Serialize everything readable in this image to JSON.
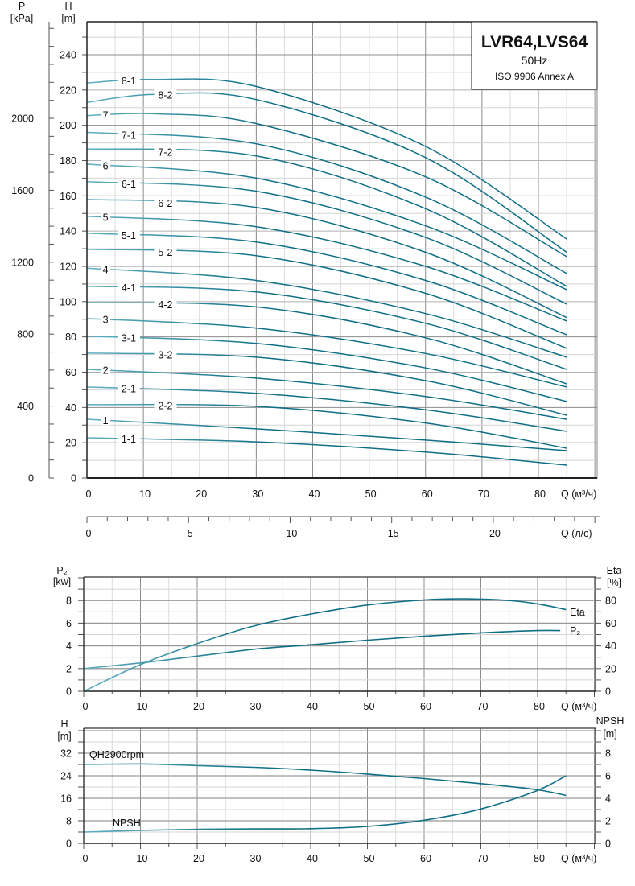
{
  "colors": {
    "curve_light": "#5fb0c0",
    "curve_dark": "#0f6f86",
    "grid_major": "#8c8c8c",
    "grid_minor": "#d4d4d4",
    "frame": "#222222"
  },
  "chart_data": [
    {
      "type": "line",
      "title": "LVR64,LVS64",
      "subtitle": "50Hz",
      "standard": "ISO 9906 Annex A",
      "xlabel": "Q (м³/ч)",
      "x2label": "Q (л/с)",
      "ylabel": {
        "name": "H",
        "unit": "[m]"
      },
      "y2label": {
        "name": "P",
        "unit": "[kPa]"
      },
      "xlim": [
        0,
        90
      ],
      "ylim": [
        0,
        260
      ],
      "xticks": [
        0,
        10,
        20,
        30,
        40,
        50,
        60,
        70,
        80
      ],
      "x2ticks": [
        0,
        5,
        10,
        15,
        20
      ],
      "yticks": [
        0,
        20,
        40,
        60,
        80,
        100,
        120,
        140,
        160,
        180,
        200,
        220,
        240
      ],
      "y2ticks": [
        0,
        400,
        800,
        1200,
        1600,
        2000
      ],
      "grid": true,
      "series": [
        {
          "name": "8-1",
          "x": [
            0,
            12,
            30,
            60,
            85
          ],
          "y": [
            224,
            226,
            222,
            188,
            135.5
          ]
        },
        {
          "name": "8-2",
          "x": [
            0,
            12,
            30,
            60,
            85
          ],
          "y": [
            213,
            217.5,
            214.6,
            181.7,
            128
          ]
        },
        {
          "name": "7",
          "x": [
            0,
            12,
            30,
            60,
            85
          ],
          "y": [
            205.5,
            206.5,
            201,
            170.8,
            125.5
          ]
        },
        {
          "name": "7-1",
          "x": [
            0,
            30,
            60,
            85
          ],
          "y": [
            196,
            189.5,
            159.3,
            116
          ]
        },
        {
          "name": "7-2",
          "x": [
            0,
            30,
            60,
            85
          ],
          "y": [
            186.6,
            182.6,
            152.7,
            108.7
          ]
        },
        {
          "name": "6",
          "x": [
            0,
            30,
            60,
            85
          ],
          "y": [
            178,
            170,
            143,
            106.8
          ]
        },
        {
          "name": "6-1",
          "x": [
            0,
            30,
            60,
            85
          ],
          "y": [
            168,
            162.6,
            136.4,
            98.6
          ]
        },
        {
          "name": "6-2",
          "x": [
            0,
            30,
            60,
            85
          ],
          "y": [
            158,
            153.4,
            128,
            91
          ]
        },
        {
          "name": "5",
          "x": [
            0,
            30,
            60,
            85
          ],
          "y": [
            148.4,
            142.5,
            120,
            89
          ]
        },
        {
          "name": "5-1",
          "x": [
            0,
            30,
            60,
            85
          ],
          "y": [
            138.8,
            133.8,
            112,
            81.2
          ]
        },
        {
          "name": "5-2",
          "x": [
            0,
            30,
            60,
            85
          ],
          "y": [
            129.7,
            126,
            104.7,
            73.5
          ]
        },
        {
          "name": "4",
          "x": [
            0,
            30,
            60,
            85
          ],
          "y": [
            119,
            112,
            93.2,
            68.5
          ]
        },
        {
          "name": "4-1",
          "x": [
            0,
            30,
            60,
            85
          ],
          "y": [
            108.7,
            105.5,
            87.7,
            61.6
          ]
        },
        {
          "name": "4-2",
          "x": [
            0,
            30,
            60,
            85
          ],
          "y": [
            99.5,
            97,
            79.5,
            53.4
          ]
        },
        {
          "name": "3",
          "x": [
            0,
            30,
            60,
            85
          ],
          "y": [
            90.4,
            85,
            70.6,
            51.6
          ]
        },
        {
          "name": "3-1",
          "x": [
            0,
            30,
            60,
            85
          ],
          "y": [
            80.4,
            76.3,
            62.4,
            43.4
          ]
        },
        {
          "name": "3-2",
          "x": [
            0,
            30,
            60,
            85
          ],
          "y": [
            70.8,
            68.5,
            55.2,
            35.6
          ]
        },
        {
          "name": "2",
          "x": [
            0,
            30,
            60,
            85
          ],
          "y": [
            61.6,
            56.6,
            46.2,
            33.3
          ]
        },
        {
          "name": "2-1",
          "x": [
            0,
            30,
            60,
            85
          ],
          "y": [
            51.6,
            48,
            38.7,
            26.5
          ]
        },
        {
          "name": "2-2",
          "x": [
            0,
            30,
            60,
            85
          ],
          "y": [
            41.6,
            40.6,
            31.2,
            16.9
          ]
        },
        {
          "name": "1",
          "x": [
            0,
            30,
            60,
            85
          ],
          "y": [
            33.3,
            27.9,
            21.5,
            15.5
          ]
        },
        {
          "name": "1-1",
          "x": [
            0,
            30,
            60,
            85
          ],
          "y": [
            22.8,
            20.5,
            14.7,
            7.3
          ]
        }
      ]
    },
    {
      "type": "line",
      "xlabel": "Q (м³/ч)",
      "ylabel": {
        "name": "P₂",
        "unit": "[kw]"
      },
      "y2label": {
        "name": "Eta",
        "unit": "[%]"
      },
      "xlim": [
        0,
        90
      ],
      "ylim": [
        0,
        10
      ],
      "y2lim": [
        0,
        100
      ],
      "xticks": [
        0,
        10,
        20,
        30,
        40,
        50,
        60,
        70,
        80
      ],
      "yticks": [
        0,
        2,
        4,
        6,
        8
      ],
      "y2ticks": [
        0,
        20,
        40,
        60,
        80
      ],
      "grid": true,
      "series": [
        {
          "name": "Eta",
          "axis": "right",
          "x": [
            0,
            10,
            20,
            30,
            40,
            50,
            60,
            67,
            75,
            80,
            85
          ],
          "y": [
            0,
            23.5,
            42,
            57.5,
            68,
            76,
            80.5,
            81.5,
            80,
            77,
            72
          ]
        },
        {
          "name": "P₂",
          "axis": "left",
          "x": [
            0,
            10,
            20,
            30,
            40,
            50,
            60,
            70,
            80,
            84
          ],
          "y": [
            2.0,
            2.5,
            3.1,
            3.7,
            4.1,
            4.5,
            4.85,
            5.15,
            5.35,
            5.35
          ]
        }
      ]
    },
    {
      "type": "line",
      "xlabel": "Q (м³/ч)",
      "ylabel": {
        "name": "H",
        "unit": "[m]"
      },
      "y2label": {
        "name": "NPSH",
        "unit": "[m]"
      },
      "xlim": [
        0,
        90
      ],
      "ylim": [
        0,
        40
      ],
      "y2lim": [
        0,
        10
      ],
      "xticks": [
        0,
        10,
        20,
        30,
        40,
        50,
        60,
        70,
        80
      ],
      "yticks": [
        0,
        8,
        16,
        24,
        32
      ],
      "y2ticks": [
        0,
        2,
        4,
        6,
        8
      ],
      "grid": true,
      "series": [
        {
          "name": "QH2900rpm",
          "axis": "left",
          "x": [
            0,
            10,
            20,
            30,
            40,
            50,
            60,
            70,
            80,
            85
          ],
          "y": [
            28,
            28.2,
            27.6,
            27,
            26,
            24.6,
            23,
            21.2,
            19,
            17
          ]
        },
        {
          "name": "NPSH",
          "axis": "right",
          "x": [
            0,
            10,
            20,
            30,
            40,
            50,
            60,
            70,
            80,
            85
          ],
          "y": [
            1.0,
            1.15,
            1.25,
            1.28,
            1.3,
            1.5,
            2.05,
            3.05,
            4.7,
            6.0
          ]
        }
      ]
    }
  ]
}
